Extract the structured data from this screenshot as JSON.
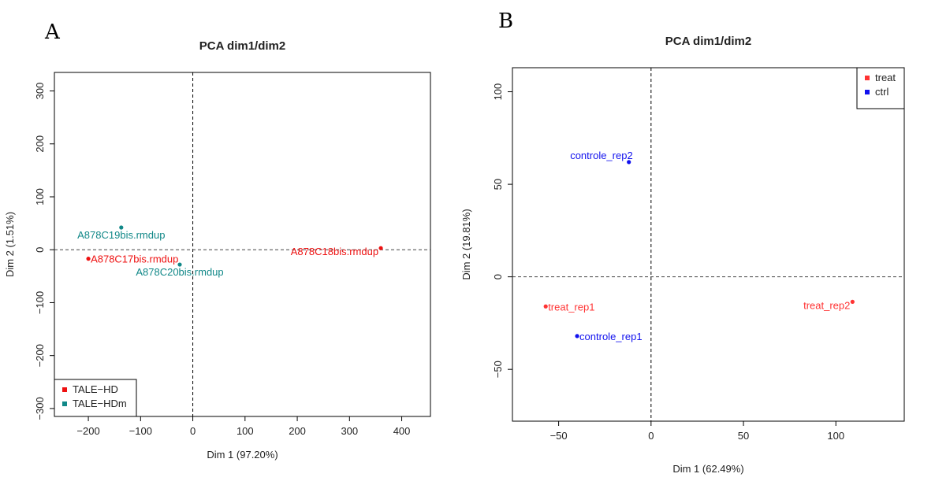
{
  "panels": {
    "A": {
      "letter": "A"
    },
    "B": {
      "letter": "B"
    }
  },
  "chart_data": [
    {
      "panel": "A",
      "type": "scatter",
      "title": "PCA dim1/dim2",
      "xlabel": "Dim 1 (97.20%)",
      "ylabel": "Dim 2 (1.51%)",
      "xlim": [
        -265,
        455
      ],
      "ylim": [
        -315,
        335
      ],
      "xticks": [
        -200,
        -100,
        0,
        100,
        200,
        300,
        400
      ],
      "yticks": [
        -300,
        -200,
        -100,
        0,
        100,
        200,
        300
      ],
      "xtick_labels": [
        "−200",
        "−100",
        "0",
        "100",
        "200",
        "300",
        "400"
      ],
      "ytick_labels": [
        "−300",
        "−200",
        "−100",
        "0",
        "100",
        "200",
        "300"
      ],
      "reference_lines": {
        "x": 0,
        "y": 0,
        "style": "dashed"
      },
      "legend": {
        "position": "bottom-left",
        "entries": [
          {
            "label": "TALE−HD",
            "color": "#ee1111"
          },
          {
            "label": "TALE−HDm",
            "color": "#118888"
          }
        ]
      },
      "points": [
        {
          "label": "A878C17bis.rmdup",
          "x": -200,
          "y": -17,
          "group": "TALE−HD",
          "color": "#ee1111",
          "label_side": "right"
        },
        {
          "label": "A878C18bis.rmdup",
          "x": 360,
          "y": 3,
          "group": "TALE−HD",
          "color": "#ee1111",
          "label_side": "left"
        },
        {
          "label": "A878C19bis.rmdup",
          "x": -137,
          "y": 42,
          "group": "TALE−HDm",
          "color": "#118888",
          "label_side": "below"
        },
        {
          "label": "A878C20bis.rmdup",
          "x": -25,
          "y": -28,
          "group": "TALE−HDm",
          "color": "#118888",
          "label_side": "below"
        }
      ]
    },
    {
      "panel": "B",
      "type": "scatter",
      "title": "PCA dim1/dim2",
      "xlabel": "Dim 1 (62.49%)",
      "ylabel": "Dim 2 (19.81%)",
      "xlim": [
        -75,
        137
      ],
      "ylim": [
        -78,
        113
      ],
      "xticks": [
        -50,
        0,
        50,
        100
      ],
      "yticks": [
        -50,
        0,
        50,
        100
      ],
      "xtick_labels": [
        "−50",
        "0",
        "50",
        "100"
      ],
      "ytick_labels": [
        "−50",
        "0",
        "50",
        "100"
      ],
      "reference_lines": {
        "x": 0,
        "y": 0,
        "style": "dashed"
      },
      "legend": {
        "position": "top-right",
        "entries": [
          {
            "label": "treat",
            "color": "#ff3333"
          },
          {
            "label": "ctrl",
            "color": "#1111ee"
          }
        ]
      },
      "points": [
        {
          "label": "controle_rep2",
          "x": -12,
          "y": 62,
          "group": "ctrl",
          "color": "#1111ee",
          "label_side": "above-left"
        },
        {
          "label": "treat_rep1",
          "x": -57,
          "y": -16,
          "group": "treat",
          "color": "#ff3333",
          "label_side": "right"
        },
        {
          "label": "treat_rep2",
          "x": 109,
          "y": -13.5,
          "group": "treat",
          "color": "#ff3333",
          "label_side": "left"
        },
        {
          "label": "controle_rep1",
          "x": -40,
          "y": -32,
          "group": "ctrl",
          "color": "#1111ee",
          "label_side": "right"
        }
      ]
    }
  ]
}
